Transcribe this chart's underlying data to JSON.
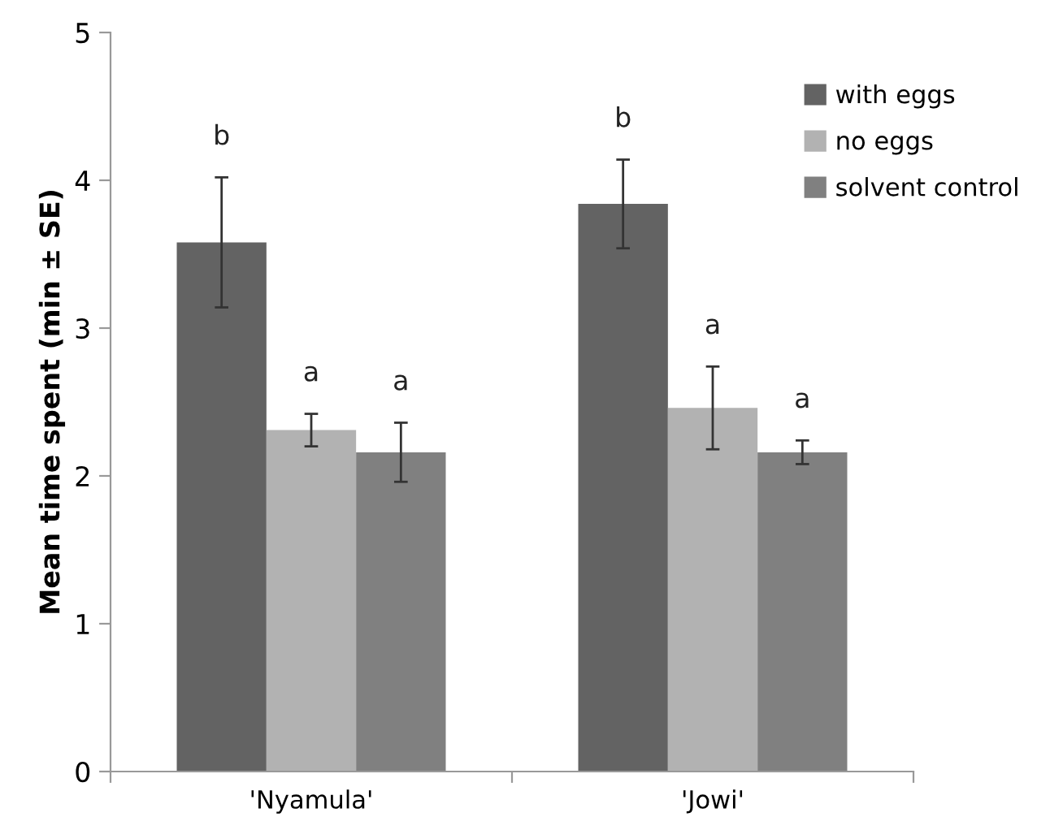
{
  "chart_data": {
    "type": "bar",
    "ylabel": "Mean time spent (min ± SE)",
    "categories": [
      "'Nyamula'",
      "'Jowi'"
    ],
    "series": [
      {
        "name": "with eggs",
        "color": "#636363",
        "values": [
          3.58,
          3.84
        ],
        "errors": [
          0.44,
          0.3
        ]
      },
      {
        "name": "no eggs",
        "color": "#b2b2b2",
        "values": [
          2.31,
          2.46
        ],
        "errors": [
          0.11,
          0.28
        ]
      },
      {
        "name": "solvent control",
        "color": "#808080",
        "values": [
          2.16,
          2.16
        ],
        "errors": [
          0.2,
          0.08
        ]
      }
    ],
    "annotations": [
      "b",
      "a",
      "a",
      "b",
      "a",
      "a"
    ],
    "ylim": [
      0,
      5
    ],
    "yticks": [
      0,
      1,
      2,
      3,
      4,
      5
    ],
    "grid": false,
    "legend": "top right"
  }
}
